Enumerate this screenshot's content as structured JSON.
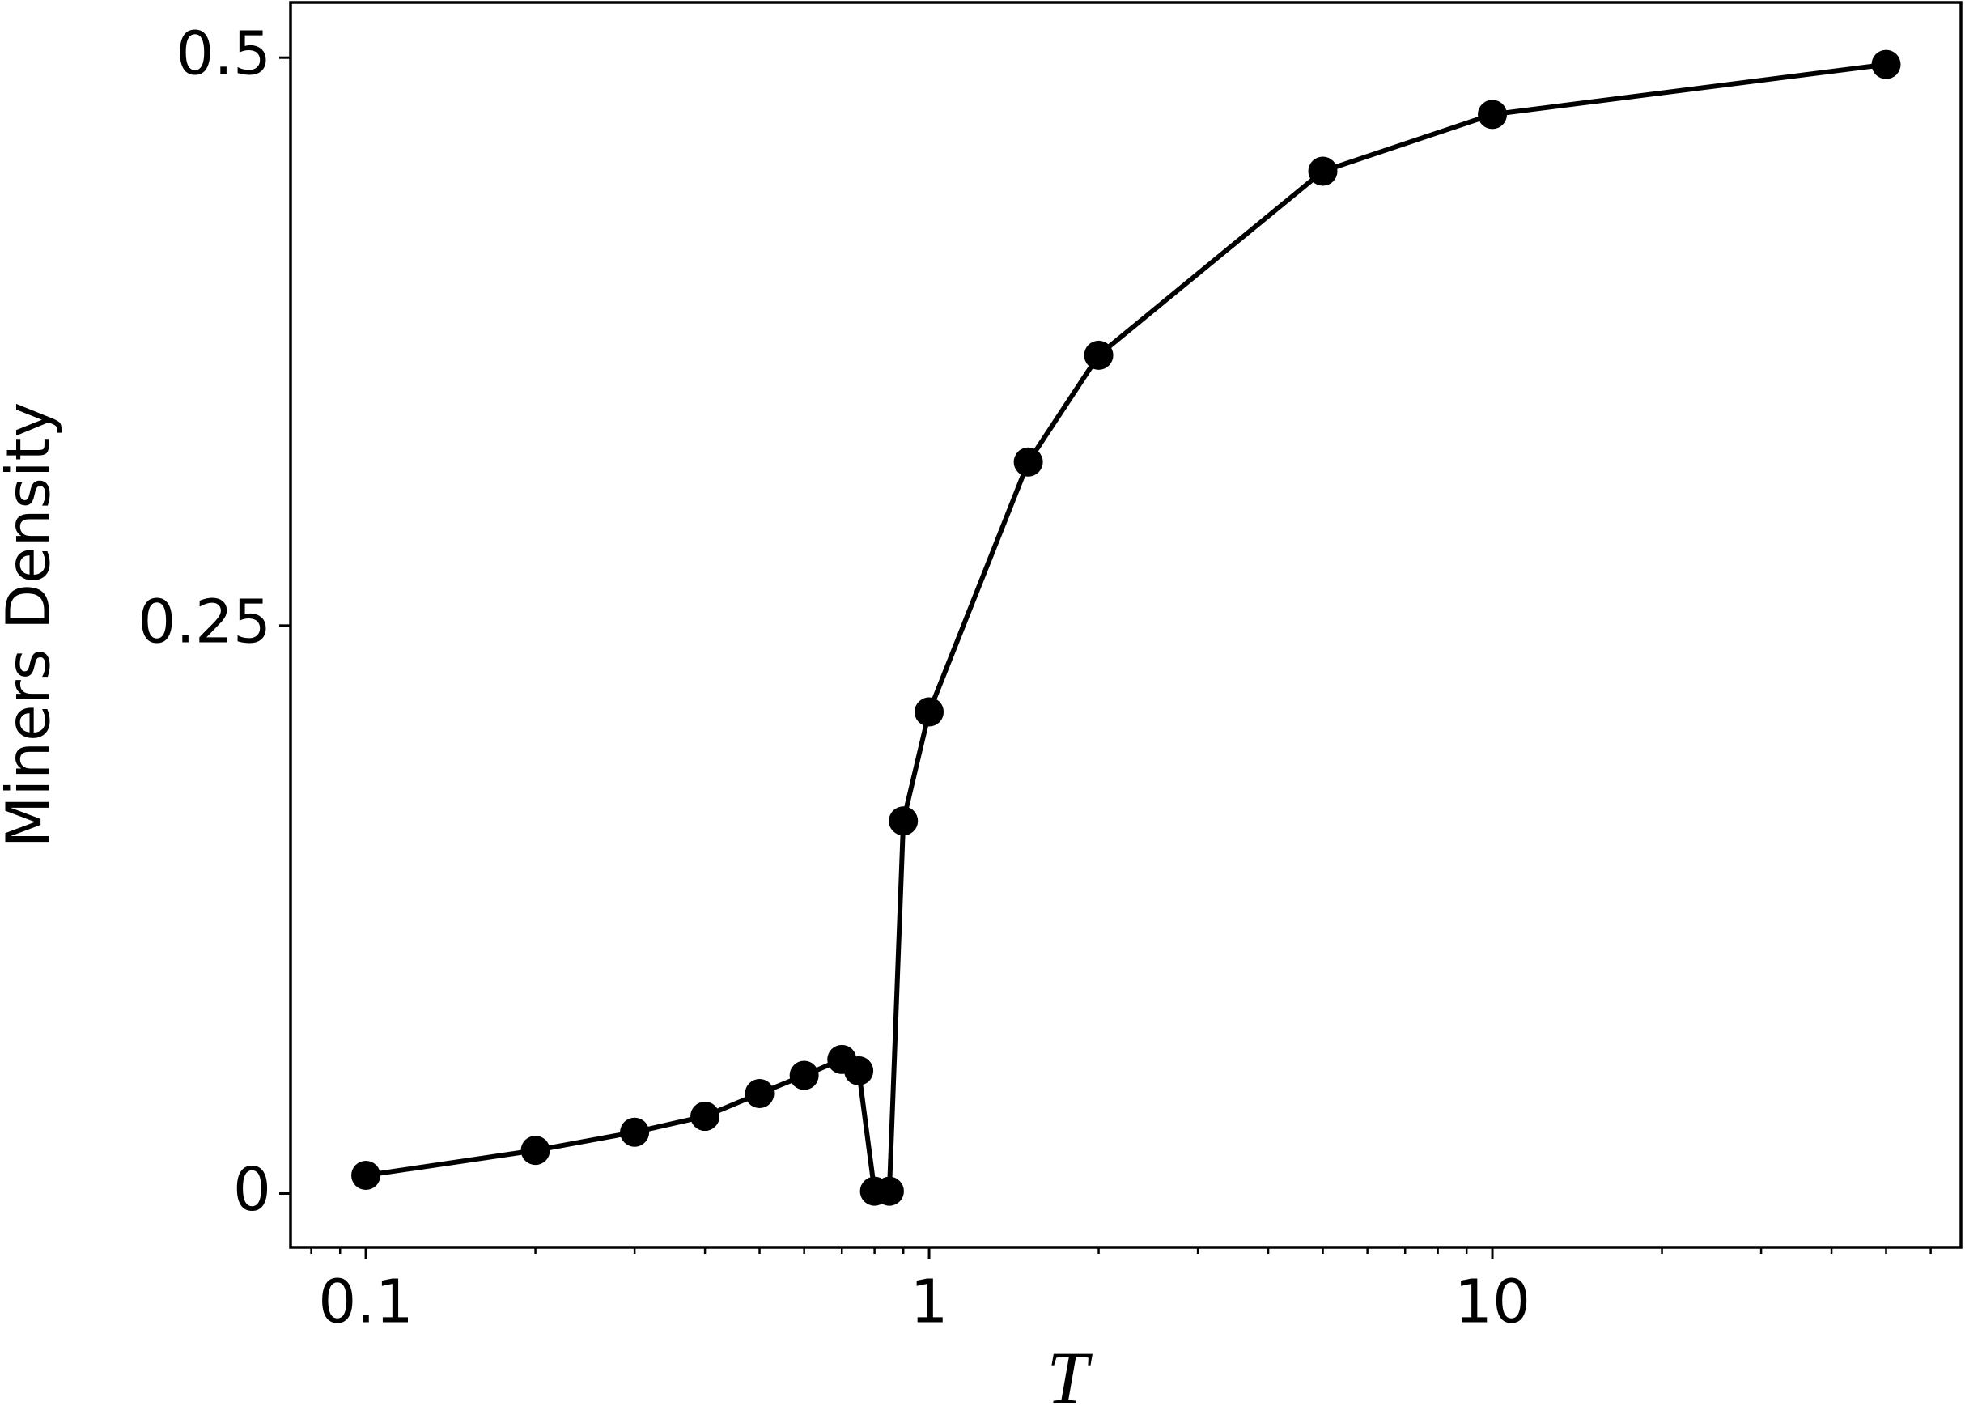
{
  "chart_data": {
    "type": "line",
    "xlabel": "T",
    "ylabel": "Miners Density",
    "x": [
      0.1,
      0.2,
      0.3,
      0.4,
      0.5,
      0.6,
      0.7,
      0.75,
      0.8,
      0.85,
      0.9,
      1,
      1.5,
      2,
      5,
      10,
      50
    ],
    "series": [
      {
        "color": "#000000",
        "values": [
          0.008,
          0.019,
          0.027,
          0.034,
          0.044,
          0.052,
          0.059,
          0.054,
          0.001,
          0.001,
          0.164,
          0.212,
          0.322,
          0.369,
          0.45,
          0.475,
          0.497
        ],
        "errors": [
          0.002,
          0.005,
          0.005,
          0.005,
          0.005,
          0.004,
          0.003,
          0.003,
          0.001,
          0.001,
          0.002,
          0.002,
          0.002,
          0.002,
          0.002,
          0.002,
          0.002
        ]
      }
    ],
    "xscale": "log",
    "xlim": [
      0.0735,
      67.9
    ],
    "xticks": [
      0.1,
      1,
      10
    ],
    "xminorticks": [
      0.08,
      0.09,
      0.2,
      0.3,
      0.4,
      0.5,
      0.6,
      0.7,
      0.8,
      0.9,
      2,
      3,
      4,
      5,
      6,
      7,
      8,
      9,
      20,
      30,
      40,
      50,
      60
    ],
    "ylim": [
      -0.0237,
      0.5243
    ],
    "yticks": [
      0,
      0.25,
      0.5
    ],
    "grid": false
  }
}
